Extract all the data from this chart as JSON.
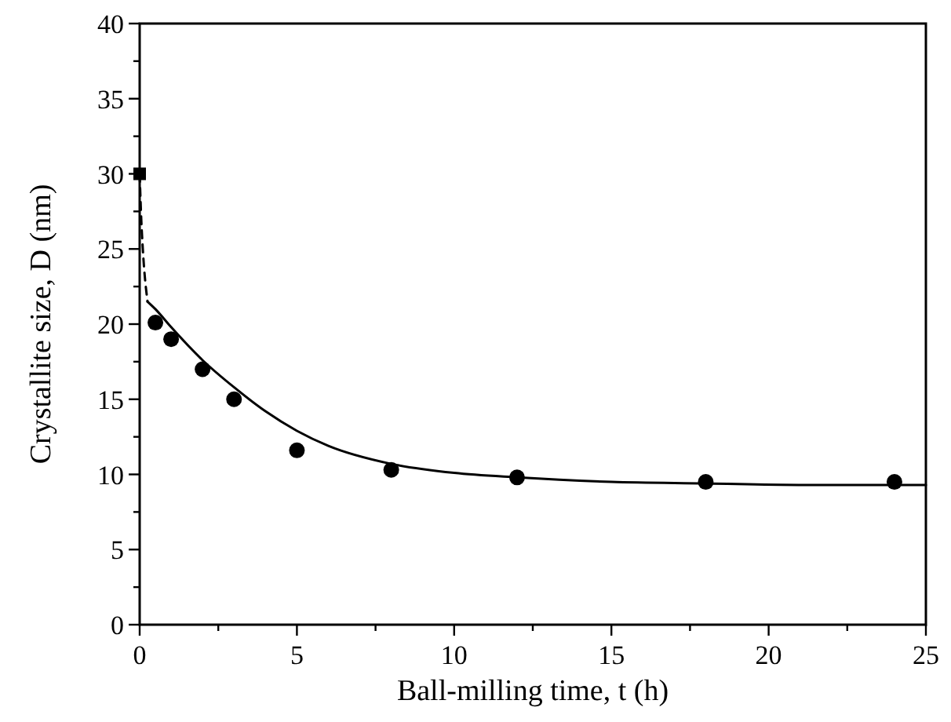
{
  "chart_data": {
    "type": "scatter",
    "xlabel": "Ball-milling time, t (h)",
    "ylabel": "Crystallite size, D (nm)",
    "xlim": [
      0,
      25
    ],
    "ylim": [
      0,
      40
    ],
    "xticks": [
      0,
      {
        "value": 2.5,
        "label": null
      },
      5,
      {
        "value": 7.5,
        "label": null
      },
      10,
      {
        "value": 12.5,
        "label": null
      },
      15,
      {
        "value": 17.5,
        "label": null
      },
      20,
      {
        "value": 22.5,
        "label": null
      },
      25
    ],
    "yticks": [
      0,
      {
        "value": 2.5,
        "label": null
      },
      5,
      {
        "value": 7.5,
        "label": null
      },
      10,
      {
        "value": 12.5,
        "label": null
      },
      15,
      {
        "value": 17.5,
        "label": null
      },
      20,
      {
        "value": 22.5,
        "label": null
      },
      25,
      {
        "value": 27.5,
        "label": null
      },
      30,
      {
        "value": 32.5,
        "label": null
      },
      35,
      {
        "value": 37.5,
        "label": null
      },
      40
    ],
    "grid": false,
    "series": [
      {
        "type": "line",
        "color": "#000000",
        "line_style": "dashed",
        "x": [
          0,
          0.05,
          0.1,
          0.25
        ],
        "values": [
          30,
          27,
          25,
          21.5
        ]
      },
      {
        "type": "line",
        "color": "#000000",
        "line_style": "solid",
        "x": [
          0.25,
          0.5,
          1,
          2,
          3,
          4,
          5,
          6,
          8,
          10,
          12,
          15,
          18,
          21,
          24,
          25
        ],
        "values": [
          21.5,
          21,
          19.8,
          17.6,
          15.8,
          14.2,
          12.9,
          11.9,
          10.7,
          10.1,
          9.8,
          9.5,
          9.4,
          9.3,
          9.3,
          9.3
        ]
      },
      {
        "color": "#000000",
        "marker": "square",
        "x": [
          0
        ],
        "values": [
          30
        ]
      },
      {
        "color": "#000000",
        "marker": "circle",
        "x": [
          0.5,
          1,
          2,
          3,
          5,
          8,
          12,
          18,
          24
        ],
        "values": [
          20.1,
          19,
          17,
          15,
          11.6,
          10.3,
          9.8,
          9.5,
          9.5
        ]
      }
    ]
  }
}
